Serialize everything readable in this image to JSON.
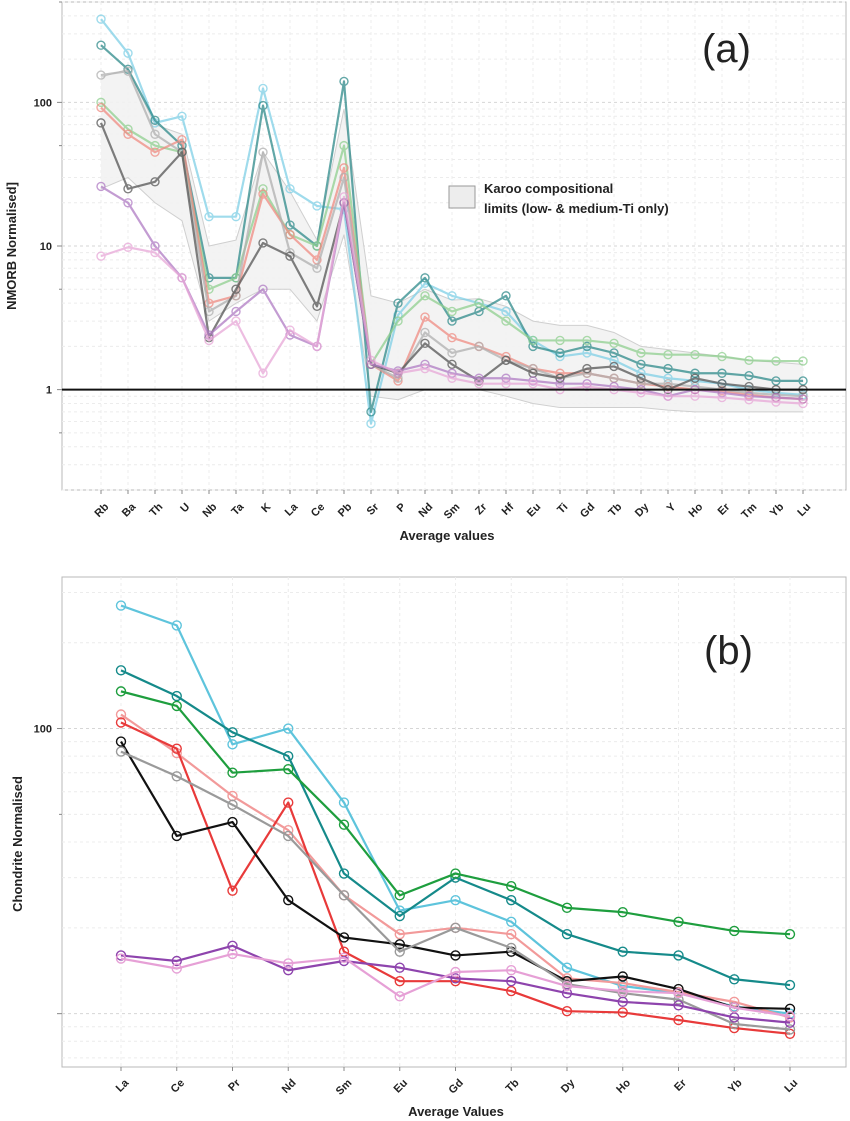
{
  "chart_data": [
    {
      "type": "line",
      "panel_label": "(a)",
      "title": "",
      "xlabel": "Average values",
      "ylabel": "NMORB Normalised]",
      "yscale": "log",
      "ylim": [
        0.2,
        500
      ],
      "yticks": [
        {
          "value": 1,
          "label": "1"
        },
        {
          "value": 10,
          "label": "10"
        },
        {
          "value": 100,
          "label": "100"
        }
      ],
      "grid": true,
      "reference_line": 1,
      "categories": [
        "Rb",
        "Ba",
        "Th",
        "U",
        "Nb",
        "Ta",
        "K",
        "La",
        "Ce",
        "Pb",
        "Sr",
        "P",
        "Nd",
        "Sm",
        "Zr",
        "Hf",
        "Eu",
        "Ti",
        "Gd",
        "Tb",
        "Dy",
        "Y",
        "Ho",
        "Er",
        "Tm",
        "Yb",
        "Lu"
      ],
      "legend": {
        "label": "Karoo compositional limits (low- & medium-Ti only)",
        "lines": [
          "Karoo compositional",
          "limits (low- & medium-Ti only)"
        ],
        "position": "center-right"
      },
      "envelope": {
        "color": "#cfcfcf",
        "upper": [
          150,
          170,
          70,
          60,
          10,
          11,
          45,
          24,
          11,
          90,
          4.5,
          4.0,
          5.0,
          4.2,
          4.3,
          3.8,
          3.0,
          2.8,
          2.8,
          2.5,
          2.0,
          1.9,
          1.8,
          1.7,
          1.6,
          1.55,
          1.5
        ],
        "lower": [
          25,
          30,
          20,
          15,
          3,
          4,
          5,
          5,
          3,
          12,
          0.9,
          0.85,
          1.0,
          1.0,
          1.0,
          0.9,
          0.8,
          0.75,
          0.75,
          0.75,
          0.75,
          0.72,
          0.7,
          0.7,
          0.7,
          0.7,
          0.7
        ]
      },
      "series": [
        {
          "color": "#7fd0e6",
          "values": [
            380,
            220,
            72,
            80,
            16,
            16,
            125,
            25,
            19,
            18,
            0.58,
            3.3,
            5.5,
            4.5,
            4.0,
            3.5,
            2.2,
            1.7,
            1.8,
            1.6,
            1.3,
            1.2,
            1.15,
            1.1,
            1.0,
            0.95,
            0.92
          ]
        },
        {
          "color": "#2e8a8a",
          "values": [
            250,
            170,
            75,
            50,
            6,
            6,
            95,
            14,
            10,
            140,
            0.7,
            4.0,
            6.0,
            3.0,
            3.5,
            4.5,
            2.0,
            1.8,
            2.0,
            1.8,
            1.5,
            1.4,
            1.3,
            1.3,
            1.25,
            1.15,
            1.15
          ]
        },
        {
          "color": "#8fcf8f",
          "values": [
            100,
            65,
            50,
            45,
            5,
            6,
            25,
            12,
            10,
            50,
            1.5,
            3.0,
            4.5,
            3.5,
            4.0,
            3.0,
            2.2,
            2.2,
            2.2,
            2.1,
            1.8,
            1.75,
            1.75,
            1.7,
            1.6,
            1.58,
            1.58
          ]
        },
        {
          "color": "#ef8b82",
          "values": [
            92,
            60,
            45,
            55,
            4,
            4.5,
            23,
            12,
            8,
            35,
            1.5,
            1.15,
            3.2,
            2.3,
            2.0,
            1.7,
            1.4,
            1.3,
            1.3,
            1.2,
            1.1,
            1.05,
            1.0,
            0.98,
            0.92,
            0.88,
            0.86
          ]
        },
        {
          "color": "#b0b0b0",
          "values": [
            155,
            165,
            60,
            45,
            3.5,
            4.5,
            45,
            9,
            7,
            30,
            1.5,
            1.2,
            2.5,
            1.8,
            2.0,
            1.6,
            1.4,
            1.2,
            1.3,
            1.2,
            1.1,
            1.1,
            1.05,
            1.0,
            0.95,
            0.92,
            0.9
          ]
        },
        {
          "color": "#555555",
          "values": [
            72,
            25,
            28,
            45,
            2.3,
            5,
            10.5,
            8.5,
            3.8,
            20,
            1.5,
            1.3,
            2.1,
            1.5,
            1.15,
            1.6,
            1.3,
            1.2,
            1.4,
            1.45,
            1.2,
            1.0,
            1.2,
            1.1,
            1.05,
            1.0,
            1.0
          ]
        },
        {
          "color": "#b07bc4",
          "values": [
            26,
            20,
            10,
            6,
            2.4,
            3.5,
            5,
            2.4,
            2.0,
            20,
            1.5,
            1.35,
            1.5,
            1.3,
            1.2,
            1.2,
            1.15,
            1.1,
            1.1,
            1.05,
            1.0,
            0.9,
            1.0,
            0.95,
            0.9,
            0.88,
            0.86
          ]
        },
        {
          "color": "#e8a8d8",
          "values": [
            8.5,
            9.8,
            9,
            6,
            2.2,
            3,
            1.3,
            2.6,
            2.0,
            22,
            1.6,
            1.3,
            1.4,
            1.2,
            1.1,
            1.1,
            1.1,
            1.0,
            1.05,
            1.0,
            0.95,
            0.9,
            0.9,
            0.88,
            0.85,
            0.82,
            0.8
          ]
        }
      ]
    },
    {
      "type": "line",
      "panel_label": "(b)",
      "title": "",
      "xlabel": "Average Values",
      "ylabel": "Chondrite Normalised",
      "yscale": "log",
      "ylim": [
        6.5,
        340
      ],
      "yticks": [
        {
          "value": 100,
          "label": "100"
        }
      ],
      "grid": true,
      "categories": [
        "La",
        "Ce",
        "Pr",
        "Nd",
        "Sm",
        "Eu",
        "Gd",
        "Tb",
        "Dy",
        "Ho",
        "Er",
        "Yb",
        "Lu"
      ],
      "series": [
        {
          "color": "#5ec4dc",
          "values": [
            270,
            230,
            88,
            100,
            55,
            23,
            25,
            21,
            14.5,
            12.5,
            11.8,
            10.6,
            10.0
          ]
        },
        {
          "color": "#158a8a",
          "values": [
            160,
            130,
            97,
            80,
            31,
            22,
            30,
            25,
            19,
            16.5,
            16,
            13.2,
            12.6
          ]
        },
        {
          "color": "#1e9e3e",
          "values": [
            135,
            120,
            70,
            72,
            46,
            26,
            31,
            28,
            23.5,
            22.7,
            21,
            19.5,
            19
          ]
        },
        {
          "color": "#f29a9a",
          "values": [
            112,
            82,
            58,
            44,
            26,
            19,
            20,
            19,
            13.3,
            12.8,
            11.9,
            11.0,
            9.7
          ]
        },
        {
          "color": "#e83a3a",
          "values": [
            105,
            85,
            27,
            55,
            16.5,
            13,
            13,
            12,
            10.2,
            10.1,
            9.5,
            8.9,
            8.5
          ]
        },
        {
          "color": "#111111",
          "values": [
            90,
            42,
            47,
            25,
            18.5,
            17.5,
            16,
            16.5,
            13,
            13.5,
            12.2,
            10.5,
            10.4
          ]
        },
        {
          "color": "#9a9a9a",
          "values": [
            83,
            68,
            54,
            42,
            26,
            16.5,
            20,
            17,
            12.7,
            11.8,
            11.2,
            9.2,
            8.8
          ]
        },
        {
          "color": "#8e44ad",
          "values": [
            16,
            15.3,
            17.3,
            14.2,
            15.3,
            14.5,
            13.3,
            13,
            11.8,
            11,
            10.7,
            9.7,
            9.3
          ]
        },
        {
          "color": "#e6a0d6",
          "values": [
            15.6,
            14.4,
            16.2,
            15,
            15.7,
            11.5,
            14,
            14.2,
            12.5,
            12,
            11.8,
            10.5,
            9.8
          ]
        }
      ]
    }
  ]
}
